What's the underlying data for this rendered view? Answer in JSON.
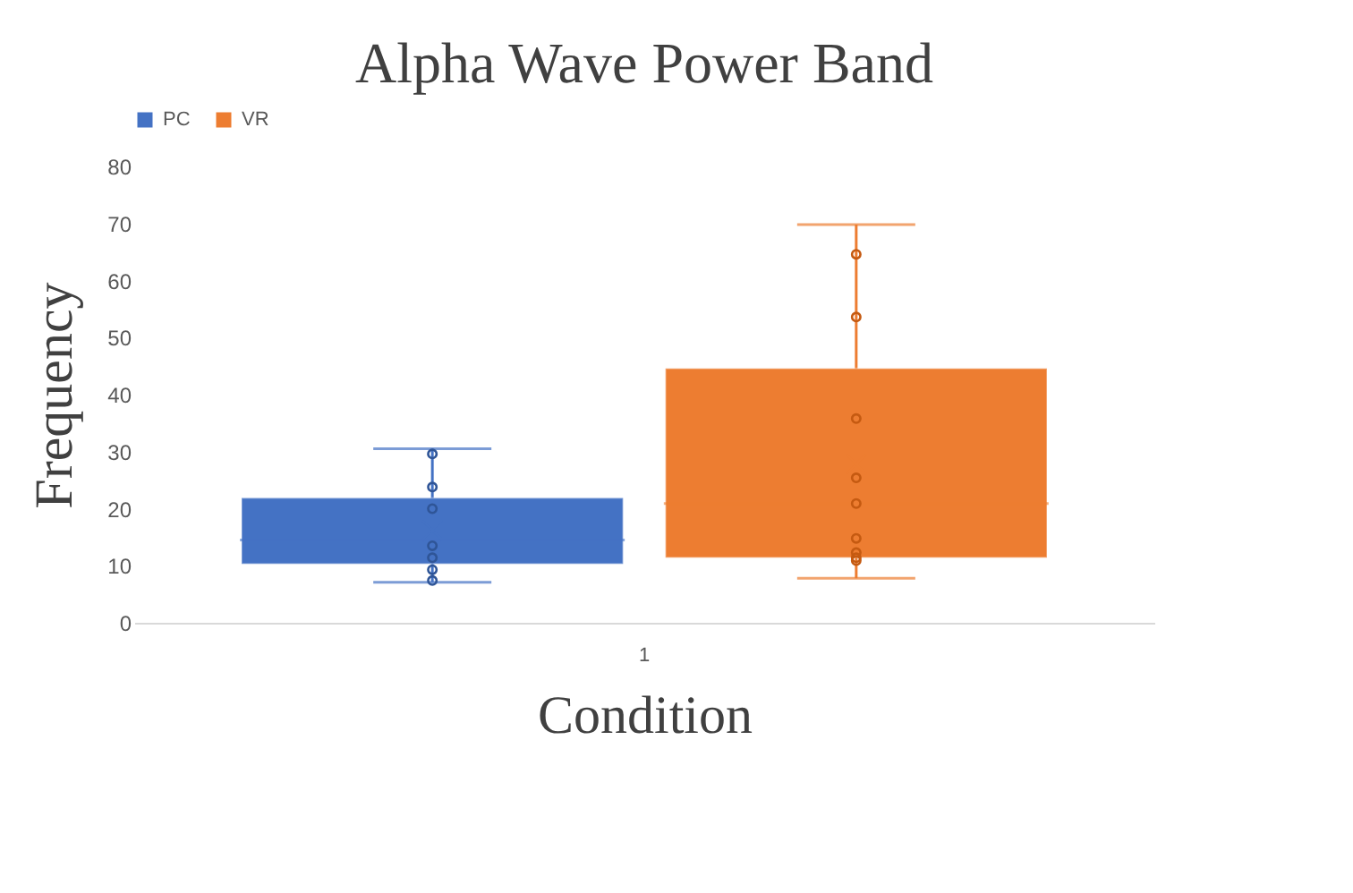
{
  "chart_data": {
    "type": "box",
    "title": "Alpha Wave Power Band",
    "xlabel": "Condition",
    "ylabel": "Frequency",
    "categories": [
      "1"
    ],
    "ylim": [
      0,
      80
    ],
    "yticks": [
      0,
      10,
      20,
      30,
      40,
      50,
      60,
      70,
      80
    ],
    "grid": false,
    "legend": "top",
    "series": [
      {
        "name": "PC",
        "color": "#4472c4",
        "type": "box",
        "boxes": [
          {
            "low": 7.1,
            "q1": 10.3,
            "median": 14.5,
            "q3": 21.9,
            "high": 30.5,
            "mean": 16.2
          }
        ]
      },
      {
        "name": "VR",
        "color": "#ed7d31",
        "type": "box",
        "boxes": [
          {
            "low": 7.8,
            "q1": 11.4,
            "median": 20.9,
            "q3": 44.6,
            "high": 69.8,
            "mean": 27.8
          }
        ]
      },
      {
        "type": "scatter",
        "color": "#2f5597",
        "marker": "circle",
        "x": [
          "1",
          "1",
          "1",
          "1",
          "1",
          "1",
          "1"
        ],
        "values": [
          29.6,
          23.8,
          20.0,
          13.5,
          11.4,
          9.3,
          7.4
        ]
      },
      {
        "type": "scatter",
        "color": "#c55a11",
        "marker": "circle",
        "x": [
          "1",
          "1",
          "1",
          "1",
          "1",
          "1",
          "1",
          "1",
          "1"
        ],
        "values": [
          64.6,
          53.6,
          35.8,
          25.4,
          20.9,
          14.8,
          12.3,
          11.4,
          10.9
        ]
      }
    ]
  }
}
